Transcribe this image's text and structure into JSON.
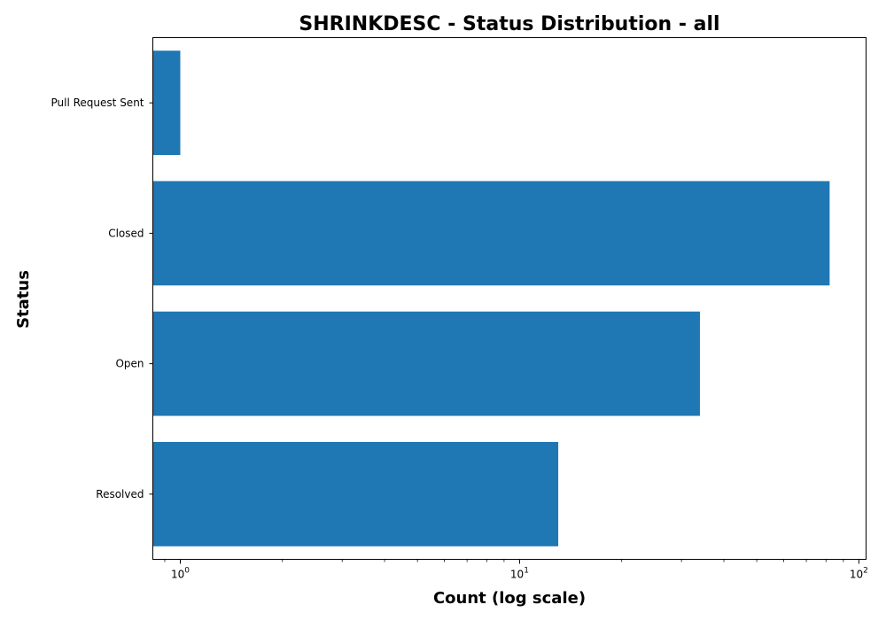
{
  "chart_data": {
    "type": "bar",
    "orientation": "horizontal",
    "title": "SHRINKDESC - Status Distribution - all",
    "xlabel": "Count (log scale)",
    "ylabel": "Status",
    "xscale": "log",
    "xlim": [
      0.83,
      105
    ],
    "categories": [
      "Pull Request Sent",
      "Closed",
      "Open",
      "Resolved"
    ],
    "values": [
      1,
      82,
      34,
      13
    ],
    "x_ticks": [
      {
        "value": 1,
        "base": "10",
        "exp": "0"
      },
      {
        "value": 10,
        "base": "10",
        "exp": "1"
      },
      {
        "value": 100,
        "base": "10",
        "exp": "2"
      }
    ],
    "bar_color": "#1f77b4",
    "grid": false
  }
}
